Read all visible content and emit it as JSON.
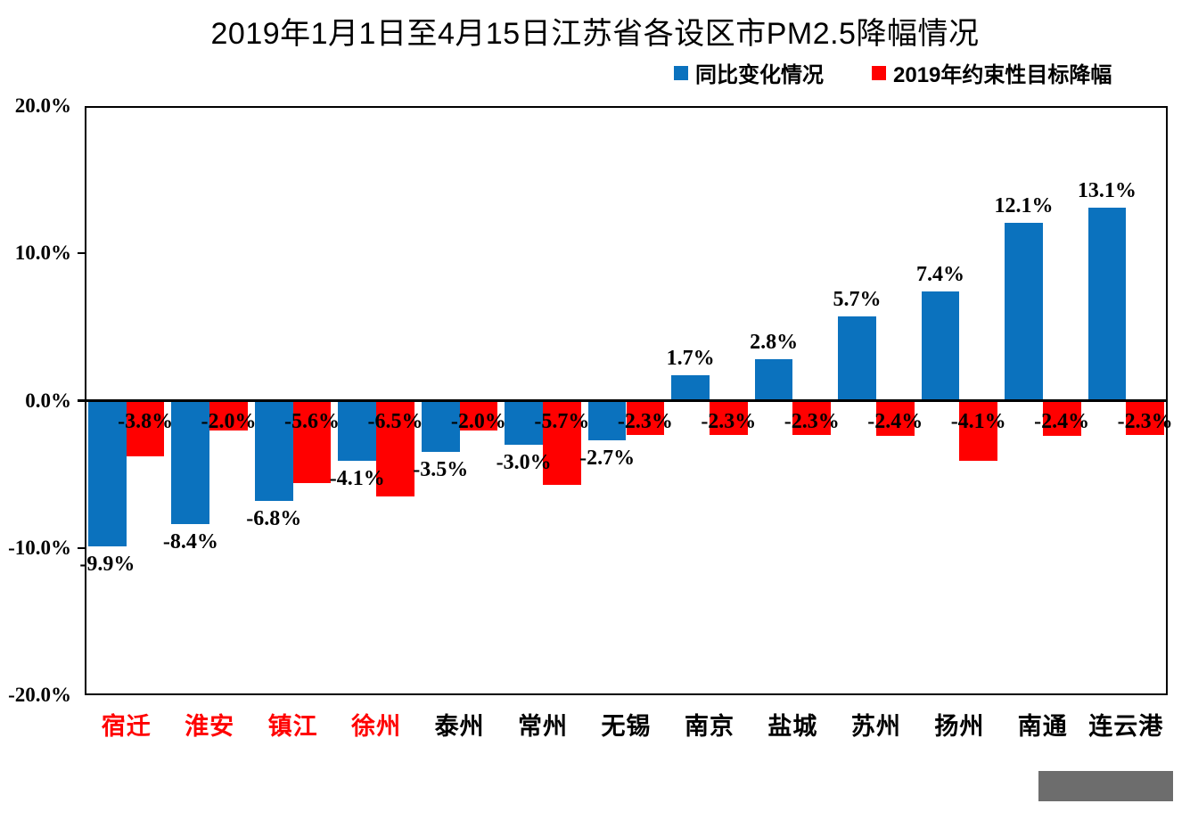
{
  "chart_data": {
    "type": "bar",
    "title": "2019年1月1日至4月15日江苏省各设区市PM2.5降幅情况",
    "categories": [
      "宿迁",
      "淮安",
      "镇江",
      "徐州",
      "泰州",
      "常州",
      "无锡",
      "南京",
      "盐城",
      "苏州",
      "扬州",
      "南通",
      "连云港"
    ],
    "category_label_colors": [
      "#FF0000",
      "#FF0000",
      "#FF0000",
      "#FF0000",
      "#000000",
      "#000000",
      "#000000",
      "#000000",
      "#000000",
      "#000000",
      "#000000",
      "#000000",
      "#000000"
    ],
    "series": [
      {
        "name": "同比变化情况",
        "color": "#0B72BE",
        "values": [
          -9.9,
          -8.4,
          -6.8,
          -4.1,
          -3.5,
          -3.0,
          -2.7,
          1.7,
          2.8,
          5.7,
          7.4,
          12.1,
          13.1
        ],
        "labels": [
          "-9.9%",
          "-8.4%",
          "-6.8%",
          "-4.1%",
          "-3.5%",
          "-3.0%",
          "-2.7%",
          "1.7%",
          "2.8%",
          "5.7%",
          "7.4%",
          "12.1%",
          "13.1%"
        ]
      },
      {
        "name": "2019年约束性目标降幅",
        "color": "#FF0000",
        "values": [
          -3.8,
          -2.0,
          -5.6,
          -6.5,
          -2.0,
          -5.7,
          -2.3,
          -2.3,
          -2.3,
          -2.4,
          -4.1,
          -2.4,
          -2.3
        ],
        "labels": [
          "-3.8%",
          "-2.0%",
          "-5.6%",
          "-6.5%",
          "-2.0%",
          "-5.7%",
          "-2.3%",
          "-2.3%",
          "-2.3%",
          "-2.4%",
          "-4.1%",
          "-2.4%",
          "-2.3%"
        ]
      }
    ],
    "ylim": [
      -20,
      20
    ],
    "y_ticks": [
      {
        "value": 20,
        "label": "20.0%"
      },
      {
        "value": 10,
        "label": "10.0%"
      },
      {
        "value": 0,
        "label": "0.0%"
      },
      {
        "value": -10,
        "label": "-10.0%"
      },
      {
        "value": -20,
        "label": "-20.0%"
      }
    ],
    "grid": false,
    "legend_position": "top-right"
  },
  "decor": {
    "watermark_cover_color": "#6D6D6D"
  }
}
